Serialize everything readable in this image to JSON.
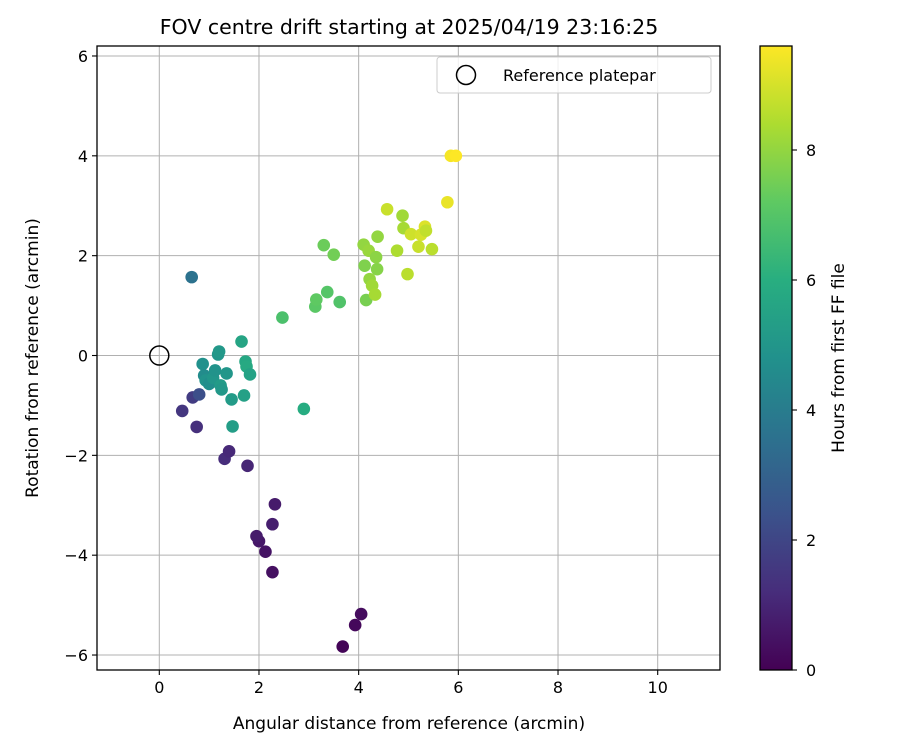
{
  "chart_data": {
    "type": "scatter",
    "title": "FOV centre drift starting at 2025/04/19 23:16:25",
    "xlabel": "Angular distance from reference (arcmin)",
    "ylabel": "Rotation from reference (arcmin)",
    "xlim": [
      -1.25,
      11.25
    ],
    "ylim": [
      -6.3,
      6.2
    ],
    "xticks": [
      0,
      2,
      4,
      6,
      8,
      10
    ],
    "xtick_labels": [
      "0",
      "2",
      "4",
      "6",
      "8",
      "10"
    ],
    "yticks": [
      -6,
      -4,
      -2,
      0,
      2,
      4,
      6
    ],
    "ytick_labels": [
      "−6",
      "−4",
      "−2",
      "0",
      "2",
      "4",
      "6"
    ],
    "grid": true,
    "legend": {
      "placement": "top-right",
      "entries": [
        "Reference platepar"
      ]
    },
    "reference_point": {
      "x": 0,
      "y": 0,
      "style": "open circle"
    },
    "colorbar": {
      "label": "Hours from first FF file",
      "colormap": "viridis",
      "range": [
        0,
        9.6
      ],
      "ticks": [
        0,
        2,
        4,
        6,
        8
      ],
      "tick_labels": [
        "0",
        "2",
        "4",
        "6",
        "8"
      ]
    },
    "series": [
      {
        "color_by": "hours",
        "points": [
          {
            "x": 3.68,
            "y": -5.83,
            "c": 0.1
          },
          {
            "x": 3.93,
            "y": -5.4,
            "c": 0.2
          },
          {
            "x": 4.05,
            "y": -5.18,
            "c": 0.3
          },
          {
            "x": 2.27,
            "y": -4.34,
            "c": 0.4
          },
          {
            "x": 2.13,
            "y": -3.93,
            "c": 0.5
          },
          {
            "x": 2.0,
            "y": -3.72,
            "c": 0.6
          },
          {
            "x": 1.95,
            "y": -3.62,
            "c": 0.7
          },
          {
            "x": 2.27,
            "y": -3.38,
            "c": 0.8
          },
          {
            "x": 2.32,
            "y": -2.98,
            "c": 0.7
          },
          {
            "x": 1.77,
            "y": -2.21,
            "c": 1.0
          },
          {
            "x": 1.31,
            "y": -2.07,
            "c": 1.2
          },
          {
            "x": 1.4,
            "y": -1.92,
            "c": 1.1
          },
          {
            "x": 0.75,
            "y": -1.43,
            "c": 1.3
          },
          {
            "x": 0.46,
            "y": -1.11,
            "c": 1.5
          },
          {
            "x": 0.67,
            "y": -0.84,
            "c": 1.7
          },
          {
            "x": 0.8,
            "y": -0.78,
            "c": 2.3
          },
          {
            "x": 0.65,
            "y": 1.57,
            "c": 3.6
          },
          {
            "x": 0.87,
            "y": -0.17,
            "c": 4.8
          },
          {
            "x": 0.9,
            "y": -0.4,
            "c": 4.6
          },
          {
            "x": 0.93,
            "y": -0.5,
            "c": 4.9
          },
          {
            "x": 1.0,
            "y": -0.57,
            "c": 4.7
          },
          {
            "x": 1.08,
            "y": -0.45,
            "c": 5.0
          },
          {
            "x": 1.12,
            "y": -0.3,
            "c": 4.9
          },
          {
            "x": 1.18,
            "y": 0.02,
            "c": 5.0
          },
          {
            "x": 1.2,
            "y": 0.08,
            "c": 5.1
          },
          {
            "x": 1.23,
            "y": -0.6,
            "c": 5.2
          },
          {
            "x": 1.25,
            "y": -0.68,
            "c": 5.1
          },
          {
            "x": 1.35,
            "y": -0.36,
            "c": 5.0
          },
          {
            "x": 1.45,
            "y": -0.88,
            "c": 5.2
          },
          {
            "x": 1.47,
            "y": -1.42,
            "c": 5.3
          },
          {
            "x": 1.65,
            "y": 0.28,
            "c": 5.6
          },
          {
            "x": 1.7,
            "y": -0.8,
            "c": 5.4
          },
          {
            "x": 1.73,
            "y": -0.12,
            "c": 5.7
          },
          {
            "x": 1.75,
            "y": -0.22,
            "c": 5.8
          },
          {
            "x": 1.82,
            "y": -0.38,
            "c": 5.5
          },
          {
            "x": 2.9,
            "y": -1.07,
            "c": 5.9
          },
          {
            "x": 2.47,
            "y": 0.76,
            "c": 6.8
          },
          {
            "x": 3.13,
            "y": 0.98,
            "c": 7.1
          },
          {
            "x": 3.15,
            "y": 1.12,
            "c": 7.2
          },
          {
            "x": 3.3,
            "y": 2.21,
            "c": 7.4
          },
          {
            "x": 3.37,
            "y": 1.27,
            "c": 7.0
          },
          {
            "x": 3.5,
            "y": 2.02,
            "c": 7.5
          },
          {
            "x": 3.62,
            "y": 1.07,
            "c": 6.9
          },
          {
            "x": 4.1,
            "y": 2.22,
            "c": 8.0
          },
          {
            "x": 4.12,
            "y": 1.8,
            "c": 7.7
          },
          {
            "x": 4.15,
            "y": 1.11,
            "c": 7.6
          },
          {
            "x": 4.2,
            "y": 2.1,
            "c": 8.1
          },
          {
            "x": 4.22,
            "y": 1.53,
            "c": 8.0
          },
          {
            "x": 4.27,
            "y": 1.4,
            "c": 8.2
          },
          {
            "x": 4.33,
            "y": 1.22,
            "c": 8.3
          },
          {
            "x": 4.35,
            "y": 1.97,
            "c": 7.9
          },
          {
            "x": 4.37,
            "y": 1.73,
            "c": 7.8
          },
          {
            "x": 4.38,
            "y": 2.38,
            "c": 8.0
          },
          {
            "x": 4.57,
            "y": 2.93,
            "c": 8.8
          },
          {
            "x": 4.77,
            "y": 2.1,
            "c": 8.4
          },
          {
            "x": 4.88,
            "y": 2.8,
            "c": 8.2
          },
          {
            "x": 4.9,
            "y": 2.55,
            "c": 8.3
          },
          {
            "x": 4.98,
            "y": 1.63,
            "c": 8.6
          },
          {
            "x": 5.05,
            "y": 2.43,
            "c": 8.9
          },
          {
            "x": 5.2,
            "y": 2.18,
            "c": 8.8
          },
          {
            "x": 5.25,
            "y": 2.42,
            "c": 9.0
          },
          {
            "x": 5.33,
            "y": 2.58,
            "c": 9.1
          },
          {
            "x": 5.35,
            "y": 2.5,
            "c": 8.7
          },
          {
            "x": 5.47,
            "y": 2.13,
            "c": 8.6
          },
          {
            "x": 5.78,
            "y": 3.07,
            "c": 9.3
          },
          {
            "x": 5.85,
            "y": 4.0,
            "c": 9.5
          },
          {
            "x": 5.95,
            "y": 4.0,
            "c": 9.6
          }
        ]
      }
    ]
  }
}
